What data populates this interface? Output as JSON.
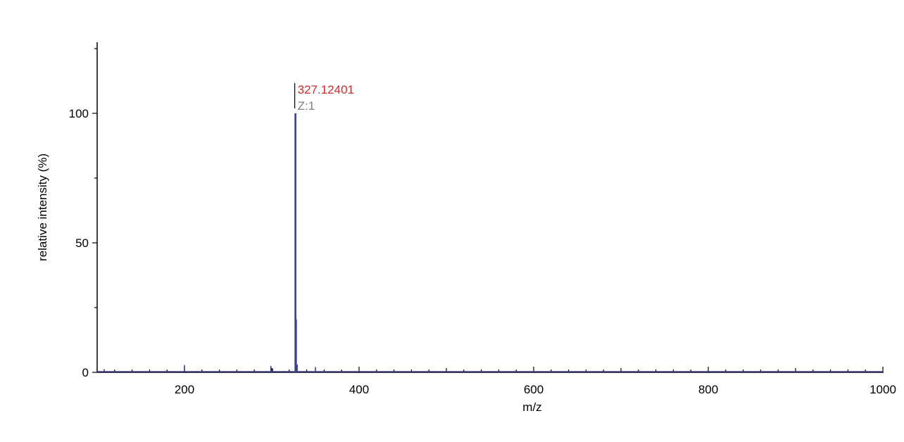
{
  "chart_data": {
    "type": "line",
    "xlabel": "m/z",
    "ylabel": "relative intensity (%)",
    "xlim": [
      100,
      1000
    ],
    "ylim": [
      0,
      125
    ],
    "x_ticks": [
      200,
      400,
      600,
      800,
      1000
    ],
    "y_ticks": [
      0,
      50,
      100
    ],
    "x_tick_labels": [
      "200",
      "400",
      "600",
      "800",
      "1000"
    ],
    "y_tick_labels": [
      "0",
      "50",
      "100"
    ],
    "grid": false,
    "series": [
      {
        "color": "#3d3f8f",
        "peaks": [
          {
            "x": 108,
            "y": 1.2
          },
          {
            "x": 120,
            "y": 0.6
          },
          {
            "x": 140,
            "y": 0.5
          },
          {
            "x": 158,
            "y": 0.4
          },
          {
            "x": 175,
            "y": 0.4
          },
          {
            "x": 200,
            "y": 2.8
          },
          {
            "x": 215,
            "y": 0.5
          },
          {
            "x": 230,
            "y": 0.4
          },
          {
            "x": 250,
            "y": 0.4
          },
          {
            "x": 270,
            "y": 0.3
          },
          {
            "x": 299,
            "y": 2.5
          },
          {
            "x": 301,
            "y": 1.5
          },
          {
            "x": 315,
            "y": 0.5
          },
          {
            "x": 327.124,
            "y": 100
          },
          {
            "x": 328.13,
            "y": 20.5
          },
          {
            "x": 329.13,
            "y": 3.0
          },
          {
            "x": 350,
            "y": 2.0
          },
          {
            "x": 360,
            "y": 0.6
          },
          {
            "x": 380,
            "y": 0.3
          },
          {
            "x": 420,
            "y": 0.3
          },
          {
            "x": 470,
            "y": 0.3
          },
          {
            "x": 520,
            "y": 0.2
          },
          {
            "x": 600,
            "y": 0.2
          },
          {
            "x": 700,
            "y": 0.2
          },
          {
            "x": 800,
            "y": 0.8
          },
          {
            "x": 900,
            "y": 0.2
          }
        ]
      }
    ],
    "annotations": [
      {
        "x": 327.124,
        "label": "327.12401",
        "sublabel": "Z:1",
        "color": "#d42b2b",
        "subcolor": "#808080"
      }
    ]
  }
}
